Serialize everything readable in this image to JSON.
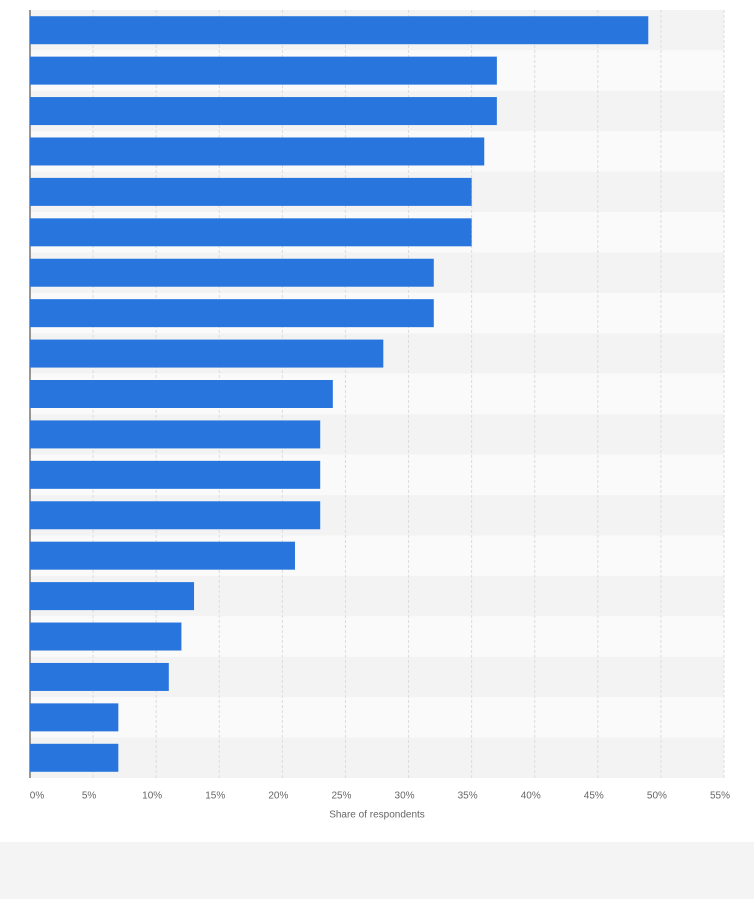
{
  "chart_data": {
    "type": "bar",
    "orientation": "horizontal",
    "x_label": "Share of respondents",
    "categories": [
      null,
      null,
      null,
      null,
      null,
      null,
      null,
      null,
      null,
      null,
      null,
      null,
      null,
      null,
      null,
      null,
      null,
      null,
      null
    ],
    "values": [
      49,
      37,
      37,
      36,
      35,
      35,
      32,
      32,
      28,
      24,
      23,
      23,
      23,
      21,
      13,
      12,
      11,
      7,
      7
    ],
    "color": "#2876dd",
    "xlim": [
      0,
      55
    ],
    "xticks": [
      {
        "value": 0,
        "label": "0%"
      },
      {
        "value": 5,
        "label": "5%"
      },
      {
        "value": 10,
        "label": "10%"
      },
      {
        "value": 15,
        "label": "15%"
      },
      {
        "value": 20,
        "label": "20%"
      },
      {
        "value": 25,
        "label": "25%"
      },
      {
        "value": 30,
        "label": "30%"
      },
      {
        "value": 35,
        "label": "35%"
      },
      {
        "value": 40,
        "label": "40%"
      },
      {
        "value": 45,
        "label": "45%"
      },
      {
        "value": 50,
        "label": "50%"
      },
      {
        "value": 55,
        "label": "55%"
      }
    ],
    "grid": true
  }
}
